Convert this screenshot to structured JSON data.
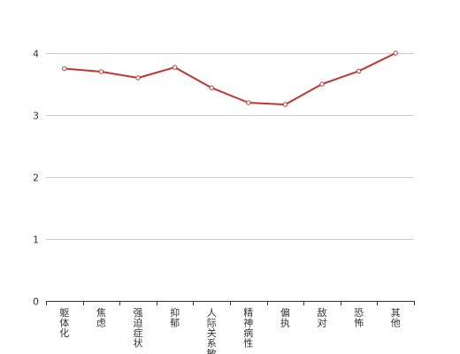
{
  "chart_data": {
    "type": "line",
    "categories": [
      "躯体化",
      "焦虑",
      "强迫症状",
      "抑郁",
      "人际关系敏感",
      "精神病性",
      "偏执",
      "敌对",
      "恐怖",
      "其他"
    ],
    "series": [
      {
        "values": [
          3.75,
          3.7,
          3.6,
          3.77,
          3.44,
          3.2,
          3.17,
          3.5,
          3.71,
          4.0
        ],
        "color": "#c23531"
      }
    ],
    "ylim": [
      0,
      4
    ],
    "yticks": [
      0,
      1,
      2,
      3,
      4
    ],
    "grid": true,
    "legend": "none",
    "title": "",
    "xlabel": "",
    "ylabel": ""
  }
}
